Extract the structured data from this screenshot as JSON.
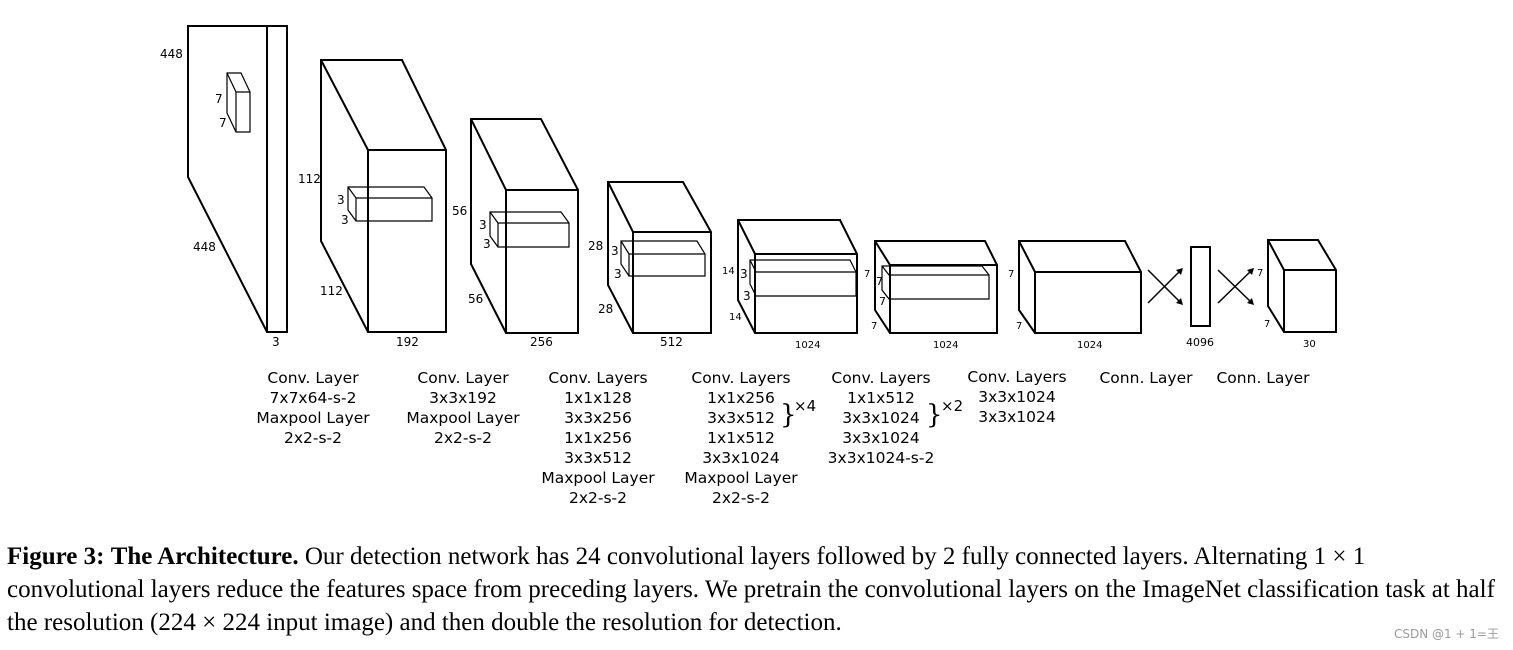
{
  "input": {
    "height": "448",
    "width": "448",
    "channels": "3"
  },
  "blocks": [
    {
      "id": "block1",
      "height": "112",
      "width": "112",
      "channels": "192",
      "kernel_h": "7",
      "kernel_w": "7",
      "label_lines": [
        "Conv. Layer",
        "7x7x64-s-2",
        "Maxpool Layer",
        "2x2-s-2"
      ]
    },
    {
      "id": "block2",
      "height": "56",
      "width": "56",
      "channels": "256",
      "kernel_h": "3",
      "kernel_w": "3",
      "label_lines": [
        "Conv. Layer",
        "3x3x192",
        "Maxpool Layer",
        "2x2-s-2"
      ]
    },
    {
      "id": "block3",
      "height": "28",
      "width": "28",
      "channels": "512",
      "kernel_h": "3",
      "kernel_w": "3",
      "label_lines": [
        "Conv. Layers",
        "1x1x128",
        "3x3x256",
        "1x1x256",
        "3x3x512",
        "Maxpool Layer",
        "2x2-s-2"
      ]
    },
    {
      "id": "block4",
      "height": "14",
      "width": "14",
      "channels": "1024",
      "kernel_h": "3",
      "kernel_w": "3",
      "label_lines": [
        "Conv. Layers",
        "1x1x256",
        "3x3x512",
        "1x1x512",
        "3x3x1024",
        "Maxpool Layer",
        "2x2-s-2"
      ],
      "repeat": "×4"
    },
    {
      "id": "block5",
      "height": "7",
      "width": "7",
      "channels": "1024",
      "kernel_h": "3",
      "kernel_w": "3",
      "label_lines": [
        "Conv. Layers",
        "1x1x512",
        "3x3x1024",
        "3x3x1024",
        "3x3x1024-s-2"
      ],
      "repeat": "×2"
    },
    {
      "id": "block6",
      "height": "7",
      "width": "7",
      "channels": "1024",
      "label_lines": [
        "Conv. Layers",
        "3x3x1024",
        "3x3x1024"
      ]
    },
    {
      "id": "fc1",
      "channels": "4096",
      "label_lines": [
        "Conn. Layer"
      ]
    },
    {
      "id": "output",
      "height": "7",
      "width": "7",
      "channels": "30",
      "label_lines": [
        "Conn. Layer"
      ]
    }
  ],
  "caption": {
    "figure_label": "Figure 3:",
    "title": "The Architecture.",
    "text": "Our detection network has 24 convolutional layers followed by 2 fully connected layers. Alternating 1 × 1 convolutional layers reduce the features space from preceding layers. We pretrain the convolutional layers on the ImageNet classification task at half the resolution (224 × 224 input image) and then double the resolution for detection."
  },
  "watermark": "CSDN @1 + 1=王"
}
